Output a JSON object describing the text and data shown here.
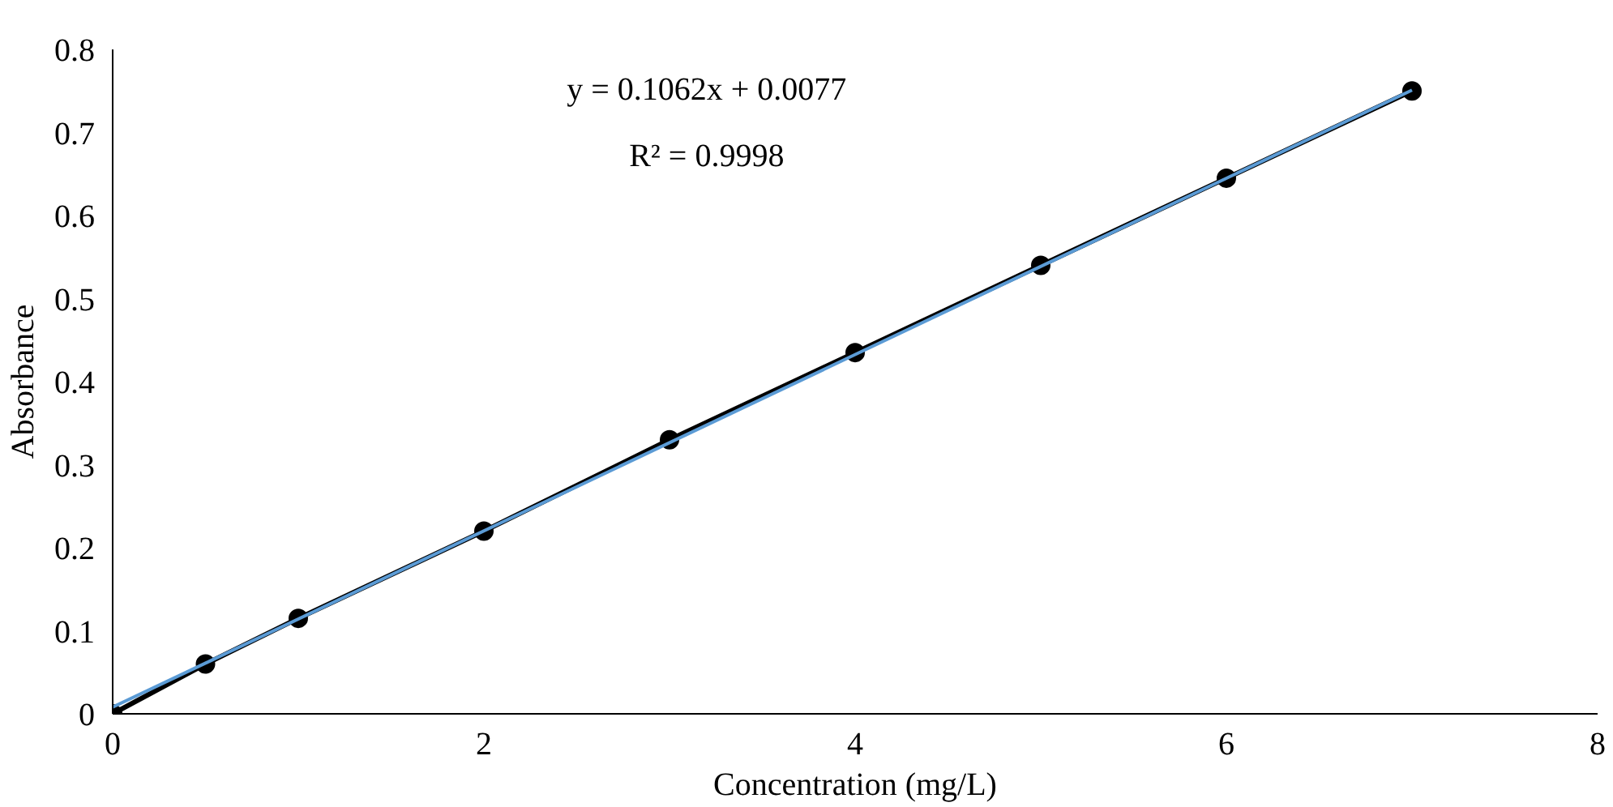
{
  "chart_data": {
    "type": "line",
    "xlabel": "Concentration (mg/L)",
    "ylabel": "Absorbance",
    "xlim": [
      0,
      8
    ],
    "xticks": [
      0,
      2,
      4,
      6,
      8
    ],
    "ylim": [
      0,
      0.8
    ],
    "yticks": [
      0,
      0.1,
      0.2,
      0.3,
      0.4,
      0.5,
      0.6,
      0.7,
      0.8
    ],
    "grid": false,
    "series": [
      {
        "color": "#5b9bd5",
        "x": [
          0,
          7
        ],
        "values": [
          0.008,
          0.751
        ],
        "marker": "none"
      },
      {
        "color": "#000000",
        "x": [
          0,
          0.5,
          1,
          2,
          3,
          4,
          5,
          6,
          7
        ],
        "values": [
          0,
          0.06,
          0.115,
          0.22,
          0.33,
          0.435,
          0.54,
          0.645,
          0.75
        ],
        "marker": "circle"
      }
    ],
    "annotations": [
      "y = 0.1062x + 0.0077",
      "R² = 0.9998"
    ]
  }
}
